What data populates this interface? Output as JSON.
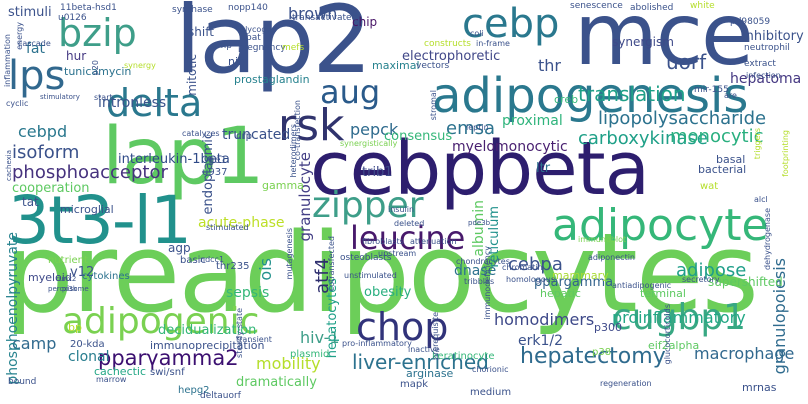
{
  "wordcloud": {
    "words": [
      {
        "text": "preadipocytes",
        "color": "#6cce59"
      },
      {
        "text": "cebpbeta",
        "color": "#2d1e6e"
      },
      {
        "text": "lap2",
        "color": "#3b528b"
      },
      {
        "text": "mce",
        "color": "#3b528b"
      },
      {
        "text": "lap1",
        "color": "#5ec962"
      },
      {
        "text": "3t3-l1",
        "color": "#21918c"
      },
      {
        "text": "adipogenesis",
        "color": "#2a788e"
      },
      {
        "text": "adipocyte",
        "color": "#35b779"
      },
      {
        "text": "bzip",
        "color": "#3e9e89"
      },
      {
        "text": "cebp",
        "color": "#2a788e"
      },
      {
        "text": "lps",
        "color": "#31688e"
      },
      {
        "text": "delta",
        "color": "#2a788e"
      },
      {
        "text": "rsk",
        "color": "#30336d"
      },
      {
        "text": "aug",
        "color": "#2a5a8a"
      },
      {
        "text": "zipper",
        "color": "#3e9e89"
      },
      {
        "text": "leucine",
        "color": "#48196b"
      },
      {
        "text": "chop",
        "color": "#31337a"
      },
      {
        "text": "cugbp1",
        "color": "#38a883"
      },
      {
        "text": "adipogenic",
        "color": "#7ad151"
      },
      {
        "text": "pparγamma2",
        "color": "#3b0f70"
      },
      {
        "text": "hepatectomy",
        "color": "#2f6b8e"
      },
      {
        "text": "liver-enriched",
        "color": "#2c728e"
      },
      {
        "text": "uorf",
        "color": "#3b528b"
      },
      {
        "text": "translation",
        "color": "#1fa088"
      },
      {
        "text": "lipopolysaccharide",
        "color": "#2c728e"
      },
      {
        "text": "carboxykinase",
        "color": "#1fa088"
      },
      {
        "text": "phosphoacceptor",
        "color": "#46327e"
      },
      {
        "text": "interleukin-1beta",
        "color": "#2f4a88"
      },
      {
        "text": "isoform",
        "color": "#3b528b"
      },
      {
        "text": "intronless",
        "color": "#3a548c"
      },
      {
        "text": "monocytic",
        "color": "#29af7f"
      },
      {
        "text": "emsa",
        "color": "#2c728e"
      },
      {
        "text": "pepck",
        "color": "#2f6b8e"
      },
      {
        "text": "cebpd",
        "color": "#2a788e"
      },
      {
        "text": "cebpa",
        "color": "#3b528b"
      },
      {
        "text": "adipose",
        "color": "#1f9e89"
      },
      {
        "text": "homodimers",
        "color": "#3e4989"
      },
      {
        "text": "proinflammatory",
        "color": "#22a785"
      },
      {
        "text": "macrophage",
        "color": "#31688e"
      },
      {
        "text": "granulopoiesis",
        "color": "#2f6b8e"
      },
      {
        "text": "hepatoma",
        "color": "#453882"
      },
      {
        "text": "brown",
        "color": "#3b528b"
      },
      {
        "text": "thr",
        "color": "#3b528b"
      },
      {
        "text": "camp",
        "color": "#306a8e"
      },
      {
        "text": "sepsis",
        "color": "#35b779"
      },
      {
        "text": "ois",
        "color": "#21918c"
      },
      {
        "text": "atf4",
        "color": "#2e2e6e"
      },
      {
        "text": "hiv-1",
        "color": "#3e9e89"
      },
      {
        "text": "erk1/2",
        "color": "#3b528b"
      },
      {
        "text": "clonal",
        "color": "#287d8e"
      },
      {
        "text": "mobility",
        "color": "#b5de2b"
      },
      {
        "text": "decidualization",
        "color": "#35b779"
      },
      {
        "text": "electrophoretic",
        "color": "#404788"
      },
      {
        "text": "acute-phase",
        "color": "#bddf26"
      },
      {
        "text": "granulocyte",
        "color": "#433e85"
      },
      {
        "text": "cooperation",
        "color": "#5ec962"
      },
      {
        "text": "myelomonocytic",
        "color": "#481f70"
      },
      {
        "text": "ppargamma",
        "color": "#33638d"
      },
      {
        "text": "truncated",
        "color": "#3b528b"
      },
      {
        "text": "consensus",
        "color": "#35b779"
      },
      {
        "text": "trib1",
        "color": "#3e4989"
      },
      {
        "text": "reticulum",
        "color": "#21918c"
      },
      {
        "text": "dnase",
        "color": "#2c728e"
      },
      {
        "text": "albumin",
        "color": "#5ec962"
      },
      {
        "text": "hepatocytes",
        "color": "#1fa088"
      },
      {
        "text": "obesity",
        "color": "#29af7f"
      },
      {
        "text": "immunoprecipitation",
        "color": "#3b528b"
      },
      {
        "text": "phosphoenolpyruvate",
        "color": "#26828e"
      },
      {
        "text": "cachectic",
        "color": "#22a785"
      },
      {
        "text": "supershifted",
        "color": "#5ec962"
      },
      {
        "text": "inhibitory",
        "color": "#3b528b"
      },
      {
        "text": "proximal",
        "color": "#2fb47c"
      },
      {
        "text": "synergism",
        "color": "#3e4989"
      },
      {
        "text": "chip",
        "color": "#481567"
      },
      {
        "text": "shift",
        "color": "#3b528b"
      },
      {
        "text": "endoplasmic",
        "color": "#3b528b"
      },
      {
        "text": "stimuli",
        "color": "#3b528b"
      },
      {
        "text": "fat",
        "color": "#2c728e"
      },
      {
        "text": "hur",
        "color": "#443983"
      },
      {
        "text": "mitotic",
        "color": "#3b528b"
      },
      {
        "text": "tunicamycin",
        "color": "#2c728e"
      },
      {
        "text": "prostaglandin",
        "color": "#26828e"
      },
      {
        "text": "maximal",
        "color": "#26828e"
      },
      {
        "text": "v12",
        "color": "#3b528b"
      },
      {
        "text": "myeloid",
        "color": "#3e4989"
      },
      {
        "text": "agp",
        "color": "#3b528b"
      },
      {
        "text": "basic",
        "color": "#3b528b"
      },
      {
        "text": "nutrient",
        "color": "#7ad151"
      },
      {
        "text": "cytokines",
        "color": "#2c728e"
      },
      {
        "text": "thr235",
        "color": "#3b528b"
      },
      {
        "text": "plasmid",
        "color": "#35b779"
      },
      {
        "text": "hepg2",
        "color": "#2c728e"
      },
      {
        "text": "dramatically",
        "color": "#5ec962"
      },
      {
        "text": "arginase",
        "color": "#2c728e"
      },
      {
        "text": "p300",
        "color": "#3e4989"
      },
      {
        "text": "mammary",
        "color": "#a8db34"
      },
      {
        "text": "hepatic",
        "color": "#5ec962"
      },
      {
        "text": "terminal",
        "color": "#5ec962"
      },
      {
        "text": "mrnas",
        "color": "#3b528b"
      },
      {
        "text": "ltr",
        "color": "#2c728e"
      },
      {
        "text": "basal",
        "color": "#3b528b"
      },
      {
        "text": "bacterial",
        "color": "#3b528b"
      },
      {
        "text": "creb",
        "color": "#35b779"
      },
      {
        "text": "nih",
        "color": "#3b528b"
      },
      {
        "text": "ge1",
        "color": "#3b528b"
      },
      {
        "text": "crp",
        "color": "#3b528b"
      },
      {
        "text": "u937",
        "color": "#3b528b"
      },
      {
        "text": "gamma",
        "color": "#7ad151"
      },
      {
        "text": "microglial",
        "color": "#3b528b"
      },
      {
        "text": "tat",
        "color": "#3b528b"
      },
      {
        "text": "swi/snf",
        "color": "#3b528b"
      },
      {
        "text": "bp",
        "color": "#b5de2b"
      },
      {
        "text": "20-kda",
        "color": "#3b528b"
      },
      {
        "text": "p38",
        "color": "#7ad151"
      },
      {
        "text": "eif2alpha",
        "color": "#5ec962"
      },
      {
        "text": "mapk",
        "color": "#3b528b"
      },
      {
        "text": "medium",
        "color": "#3b528b"
      },
      {
        "text": "keratinocyte",
        "color": "#35b779"
      },
      {
        "text": "abolished",
        "color": "#3b528b"
      },
      {
        "text": "nopp140",
        "color": "#3b528b"
      },
      {
        "text": "synthase",
        "color": "#3b528b"
      },
      {
        "text": "11beta-hsd1",
        "color": "#3b528b"
      },
      {
        "text": "u0126",
        "color": "#3b528b"
      },
      {
        "text": "senescence",
        "color": "#3b528b"
      },
      {
        "text": "white",
        "color": "#b5de2b"
      },
      {
        "text": "pd98059",
        "color": "#3b528b"
      },
      {
        "text": "neutrophil",
        "color": "#3b528b"
      },
      {
        "text": "mir-155",
        "color": "#3b528b"
      },
      {
        "text": "extract",
        "color": "#3b528b"
      },
      {
        "text": "infection",
        "color": "#3b528b"
      },
      {
        "text": "transactivated",
        "color": "#3b528b"
      },
      {
        "text": "glycogen",
        "color": "#3b528b"
      },
      {
        "text": "bat",
        "color": "#3b528b"
      },
      {
        "text": "pregnancy",
        "color": "#3b528b"
      },
      {
        "text": "amp",
        "color": "#3b528b"
      },
      {
        "text": "constructs",
        "color": "#b5de2b"
      },
      {
        "text": "in-frame",
        "color": "#3b528b"
      },
      {
        "text": "vectors",
        "color": "#3b528b"
      },
      {
        "text": "leptin",
        "color": "#3b528b"
      },
      {
        "text": "insulin",
        "color": "#3b528b"
      },
      {
        "text": "catalyzes",
        "color": "#3b528b"
      },
      {
        "text": "stimulated",
        "color": "#3b528b"
      },
      {
        "text": "fibroblasts",
        "color": "#3b528b"
      },
      {
        "text": "attenuation",
        "color": "#3b528b"
      },
      {
        "text": "immunoblot",
        "color": "#7ad151"
      },
      {
        "text": "adiponectin",
        "color": "#3b528b"
      },
      {
        "text": "upstream",
        "color": "#3b528b"
      },
      {
        "text": "osteoblasts",
        "color": "#3b528b"
      },
      {
        "text": "tribbles",
        "color": "#3b528b"
      },
      {
        "text": "chondrocytes",
        "color": "#3b528b"
      },
      {
        "text": "transient",
        "color": "#3b528b"
      },
      {
        "text": "inactive",
        "color": "#3b528b"
      },
      {
        "text": "regeneration",
        "color": "#3b528b"
      },
      {
        "text": "bound",
        "color": "#3b528b"
      },
      {
        "text": "deltauorf",
        "color": "#3b528b"
      },
      {
        "text": "start",
        "color": "#3b528b"
      },
      {
        "text": "cyclic",
        "color": "#3b528b"
      },
      {
        "text": "inflammation",
        "color": "#3b528b"
      },
      {
        "text": "cascade",
        "color": "#3b528b"
      },
      {
        "text": "energy",
        "color": "#3b528b"
      },
      {
        "text": "peroxisome",
        "color": "#3b528b"
      },
      {
        "text": "runx2",
        "color": "#3b528b"
      },
      {
        "text": "pi3k",
        "color": "#3b528b"
      },
      {
        "text": "cachexia",
        "color": "#3b528b"
      },
      {
        "text": "mefs",
        "color": "#b5de2b"
      },
      {
        "text": "triggers",
        "color": "#b5de2b"
      },
      {
        "text": "synergistically",
        "color": "#7ad151"
      },
      {
        "text": "co-transfection",
        "color": "#3b528b"
      },
      {
        "text": "mutagenesis",
        "color": "#3b528b"
      },
      {
        "text": "immunodeficiency",
        "color": "#3b528b"
      },
      {
        "text": "chromatin",
        "color": "#3b528b"
      },
      {
        "text": "homologous",
        "color": "#3b528b"
      },
      {
        "text": "secretory",
        "color": "#3b528b"
      },
      {
        "text": "antiadipogenic",
        "color": "#3b528b"
      },
      {
        "text": "glucocorticoids",
        "color": "#3b528b"
      },
      {
        "text": "dehydrogenase",
        "color": "#3b528b"
      },
      {
        "text": "alcl",
        "color": "#3b528b"
      },
      {
        "text": "wat",
        "color": "#b5de2b"
      },
      {
        "text": "footprinting",
        "color": "#b5de2b"
      },
      {
        "text": "steady-state",
        "color": "#3b528b"
      },
      {
        "text": "marrow",
        "color": "#3b528b"
      },
      {
        "text": "unstimulated",
        "color": "#3b528b"
      },
      {
        "text": "prerequisite",
        "color": "#3b528b"
      },
      {
        "text": "heterodimers",
        "color": "#3b528b"
      },
      {
        "text": "stimulatory",
        "color": "#3b528b"
      },
      {
        "text": "synergy",
        "color": "#b5de2b"
      },
      {
        "text": "p20",
        "color": "#3b528b"
      },
      {
        "text": "pro-inflammatory",
        "color": "#3b528b"
      },
      {
        "text": "stromal",
        "color": "#3b528b"
      },
      {
        "text": "ndcc1",
        "color": "#3b528b"
      },
      {
        "text": "are",
        "color": "#3b528b"
      },
      {
        "text": "pde3b",
        "color": "#3b528b"
      },
      {
        "text": "cotransfected",
        "color": "#3b528b"
      },
      {
        "text": "coli",
        "color": "#3b528b"
      },
      {
        "text": "deleted",
        "color": "#3b528b"
      },
      {
        "text": "chorionic",
        "color": "#3b528b"
      }
    ]
  }
}
